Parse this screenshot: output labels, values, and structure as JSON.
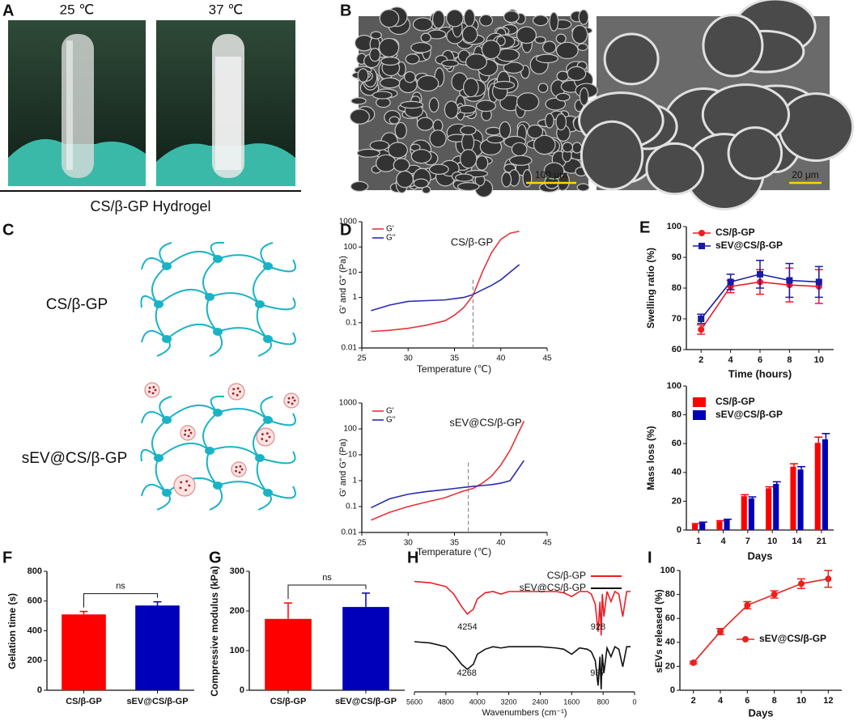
{
  "panels": [
    "A",
    "B",
    "C",
    "D",
    "E",
    "F",
    "G",
    "H",
    "I"
  ],
  "photos": {
    "temps": [
      "25 ℃",
      "37 ℃"
    ],
    "caption": "CS/β-GP Hydrogel"
  },
  "sem": {
    "scale_bars": [
      "100 μm",
      "20 μm"
    ]
  },
  "diagram": {
    "labels": [
      "CS/β-GP",
      "sEV@CS/β-GP"
    ]
  },
  "chart_data": [
    {
      "type": "line",
      "annotation": "CS/β-GP",
      "xlabel": "Temperature (℃)",
      "ylabel": "G' and G'' (Pa)",
      "log_y": true,
      "xlim": [
        25,
        45
      ],
      "ylim": [
        0.01,
        1000
      ],
      "xticks": [
        25,
        30,
        35,
        40,
        45
      ],
      "yticks": [
        0.01,
        0.1,
        1,
        10,
        100,
        1000
      ],
      "crossover_x": 37,
      "legend": "upper left",
      "x": [
        26,
        28,
        30,
        32,
        34,
        35,
        36,
        37,
        38,
        39,
        40,
        41,
        42
      ],
      "series": [
        {
          "name": "G'",
          "color": "#e8333a",
          "values": [
            0.045,
            0.05,
            0.06,
            0.08,
            0.12,
            0.2,
            0.4,
            1.2,
            10,
            60,
            200,
            350,
            420
          ]
        },
        {
          "name": "G''",
          "color": "#2b2bb0",
          "values": [
            0.3,
            0.5,
            0.7,
            0.75,
            0.8,
            0.9,
            1.0,
            1.3,
            2,
            3,
            5,
            10,
            20
          ]
        }
      ]
    },
    {
      "type": "line",
      "annotation": "sEV@CS/β-GP",
      "xlabel": "Temperature (℃)",
      "ylabel": "G' and G'' (Pa)",
      "log_y": true,
      "xlim": [
        25,
        45
      ],
      "ylim": [
        0.01,
        1000
      ],
      "xticks": [
        25,
        30,
        35,
        40,
        45
      ],
      "yticks": [
        0.01,
        0.1,
        1,
        10,
        100,
        1000
      ],
      "crossover_x": 36.5,
      "legend": "upper left",
      "x": [
        26,
        28,
        30,
        32,
        34,
        35,
        36,
        37,
        38,
        39,
        40,
        41,
        42.5
      ],
      "series": [
        {
          "name": "G'",
          "color": "#e8333a",
          "values": [
            0.03,
            0.06,
            0.1,
            0.15,
            0.22,
            0.3,
            0.4,
            0.5,
            0.8,
            1.5,
            4,
            15,
            200
          ]
        },
        {
          "name": "G''",
          "color": "#2b2bb0",
          "values": [
            0.09,
            0.2,
            0.3,
            0.38,
            0.45,
            0.5,
            0.55,
            0.6,
            0.65,
            0.7,
            0.8,
            1,
            6
          ]
        }
      ]
    },
    {
      "type": "line",
      "xlabel": "Time (hours)",
      "ylabel": "Swelling ratio (%)",
      "xlim": [
        1,
        11
      ],
      "ylim": [
        60,
        100
      ],
      "xticks": [
        2,
        4,
        6,
        8,
        10
      ],
      "yticks": [
        60,
        70,
        80,
        90,
        100
      ],
      "legend": "upper left",
      "x": [
        2,
        4,
        6,
        8,
        10
      ],
      "series": [
        {
          "name": "CS/β-GP",
          "color": "#ee1c25",
          "marker": "circle",
          "values": [
            66.5,
            80.5,
            82,
            81,
            80.5
          ],
          "errors": [
            1.5,
            2,
            4,
            5.5,
            5.5
          ]
        },
        {
          "name": "sEV@CS/β-GP",
          "color": "#1a1aa6",
          "marker": "square",
          "values": [
            70,
            82,
            84.5,
            82.5,
            82
          ],
          "errors": [
            1.5,
            2.5,
            4.5,
            5.5,
            5
          ]
        }
      ]
    },
    {
      "type": "bar",
      "xlabel": "Days",
      "ylabel": "Mass loss (%)",
      "categories": [
        "1",
        "4",
        "7",
        "10",
        "14",
        "21"
      ],
      "ylim": [
        0,
        100
      ],
      "yticks": [
        0,
        20,
        40,
        60,
        80,
        100
      ],
      "legend": "upper left",
      "series": [
        {
          "name": "CS/β-GP",
          "color": "#ff0000",
          "values": [
            4,
            6,
            23.5,
            29,
            44,
            60.5
          ],
          "errors": [
            0.5,
            0.5,
            1,
            1,
            2,
            4
          ]
        },
        {
          "name": "sEV@CS/β-GP",
          "color": "#0000bb",
          "values": [
            5,
            7,
            22,
            32,
            42,
            63
          ],
          "errors": [
            0.5,
            0.5,
            1,
            1.5,
            2,
            4
          ]
        }
      ]
    },
    {
      "type": "bar",
      "ylabel": "Gelation time (s)",
      "categories": [
        "CS/β-GP",
        "sEV@CS/β-GP"
      ],
      "values": [
        510,
        570
      ],
      "errors": [
        20,
        25
      ],
      "colors": [
        "#ff0000",
        "#0000bb"
      ],
      "ylim": [
        0,
        800
      ],
      "yticks": [
        0,
        200,
        400,
        600,
        800
      ],
      "annotation": "ns"
    },
    {
      "type": "bar",
      "ylabel": "Compressive modulus (kPa)",
      "categories": [
        "CS/β-GP",
        "sEV@CS/β-GP"
      ],
      "values": [
        180,
        210
      ],
      "errors": [
        40,
        35
      ],
      "colors": [
        "#ff0000",
        "#0000bb"
      ],
      "ylim": [
        0,
        300
      ],
      "yticks": [
        0,
        100,
        200,
        300
      ],
      "annotation": "ns"
    },
    {
      "type": "line",
      "xlabel": "Wavenumbers (cm⁻¹)",
      "xlim": [
        5600,
        0
      ],
      "ylim": [
        0,
        100
      ],
      "xticks": [
        5600,
        4800,
        4000,
        3200,
        2400,
        1600,
        800,
        0
      ],
      "legend": "upper right",
      "x": [
        5600,
        5200,
        4800,
        4600,
        4400,
        4254,
        4100,
        4000,
        3800,
        3600,
        3400,
        3200,
        2800,
        2400,
        2000,
        1800,
        1600,
        1400,
        1200,
        1100,
        1000,
        928,
        880,
        850,
        820,
        780,
        700,
        600,
        500,
        400,
        300,
        200,
        100
      ],
      "series": [
        {
          "name": "CS/β-GP",
          "color": "#ee1c25",
          "values": [
            88,
            87,
            84,
            78,
            68,
            62,
            66,
            74,
            79,
            80,
            78,
            80,
            80,
            80,
            80,
            79,
            76,
            80,
            80,
            78,
            70,
            48,
            72,
            45,
            78,
            60,
            80,
            72,
            80,
            78,
            60,
            80,
            80
          ]
        },
        {
          "name": "sEV@CS/β-GP",
          "color": "#111111",
          "values": [
            40,
            39,
            36,
            30,
            22,
            18,
            22,
            30,
            34,
            36,
            35,
            36,
            36,
            36,
            35,
            34,
            30,
            35,
            34,
            32,
            25,
            5,
            28,
            2,
            30,
            15,
            35,
            28,
            36,
            34,
            20,
            36,
            36
          ]
        }
      ],
      "annotations": [
        {
          "label": "4254",
          "x": 4254
        },
        {
          "label": "928",
          "x": 928
        },
        {
          "label": "4268",
          "x": 4268
        },
        {
          "label": "937",
          "x": 937
        }
      ]
    },
    {
      "type": "line",
      "xlabel": "Days",
      "ylabel": "sEVs released (%)",
      "xlim": [
        1,
        13
      ],
      "ylim": [
        0,
        100
      ],
      "xticks": [
        2,
        4,
        6,
        8,
        10,
        12
      ],
      "yticks": [
        0,
        20,
        40,
        60,
        80,
        100
      ],
      "legend": "center right",
      "x": [
        2,
        4,
        6,
        8,
        10,
        12
      ],
      "series": [
        {
          "name": "sEV@CS/β-GP",
          "color": "#e8221c",
          "marker": "circle",
          "values": [
            23,
            49,
            71,
            80,
            89,
            93
          ],
          "errors": [
            1,
            2.5,
            3,
            3,
            4,
            7
          ]
        }
      ]
    }
  ]
}
